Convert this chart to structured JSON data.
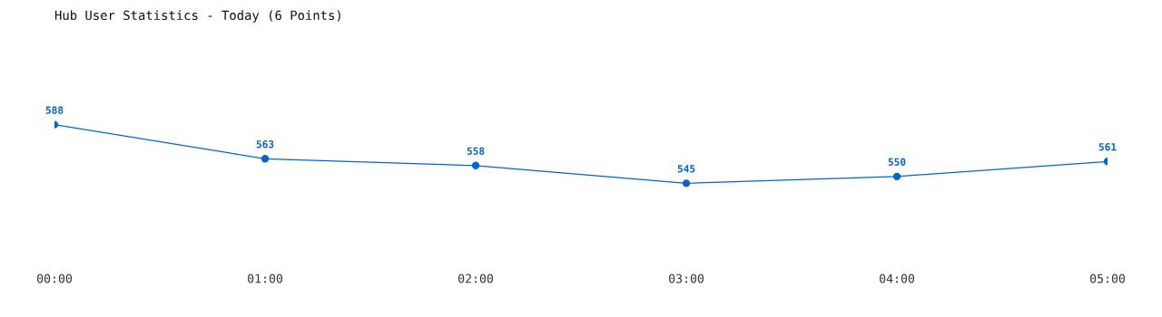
{
  "chart_data": {
    "type": "line",
    "title": "Hub User Statistics - Today (6 Points)",
    "categories": [
      "00:00",
      "01:00",
      "02:00",
      "03:00",
      "04:00",
      "05:00"
    ],
    "values": [
      588,
      563,
      558,
      545,
      550,
      561
    ],
    "color": "#0066cc",
    "marker": "circle",
    "data_labels": true,
    "grid": false,
    "legend": false
  }
}
